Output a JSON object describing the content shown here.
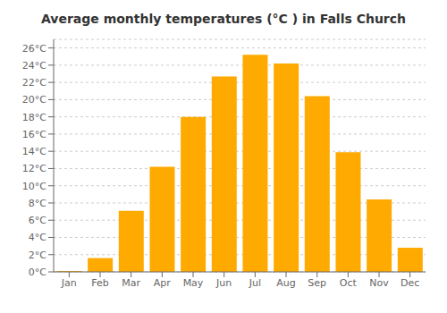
{
  "chart_data": {
    "type": "bar",
    "title": "Average monthly temperatures (°C ) in Falls Church",
    "categories": [
      "Jan",
      "Feb",
      "Mar",
      "Apr",
      "May",
      "Jun",
      "Jul",
      "Aug",
      "Sep",
      "Oct",
      "Nov",
      "Dec"
    ],
    "values": [
      0.1,
      1.6,
      7.1,
      12.2,
      18.0,
      22.7,
      25.2,
      24.2,
      20.4,
      13.9,
      8.4,
      2.8
    ],
    "color": "#FFAA00",
    "ylim": [
      0,
      27
    ],
    "yticks": [
      {
        "value": 0,
        "label": "0°C"
      },
      {
        "value": 2,
        "label": "2°C"
      },
      {
        "value": 4,
        "label": "4°C"
      },
      {
        "value": 6,
        "label": "6°C"
      },
      {
        "value": 8,
        "label": "8°C"
      },
      {
        "value": 10,
        "label": "10°C"
      },
      {
        "value": 12,
        "label": "12°C"
      },
      {
        "value": 14,
        "label": "14°C"
      },
      {
        "value": 16,
        "label": "16°C"
      },
      {
        "value": 18,
        "label": "18°C"
      },
      {
        "value": 20,
        "label": "20°C"
      },
      {
        "value": 22,
        "label": "22°C"
      },
      {
        "value": 24,
        "label": "24°C"
      },
      {
        "value": 26,
        "label": "26°C"
      }
    ],
    "grid": true
  }
}
